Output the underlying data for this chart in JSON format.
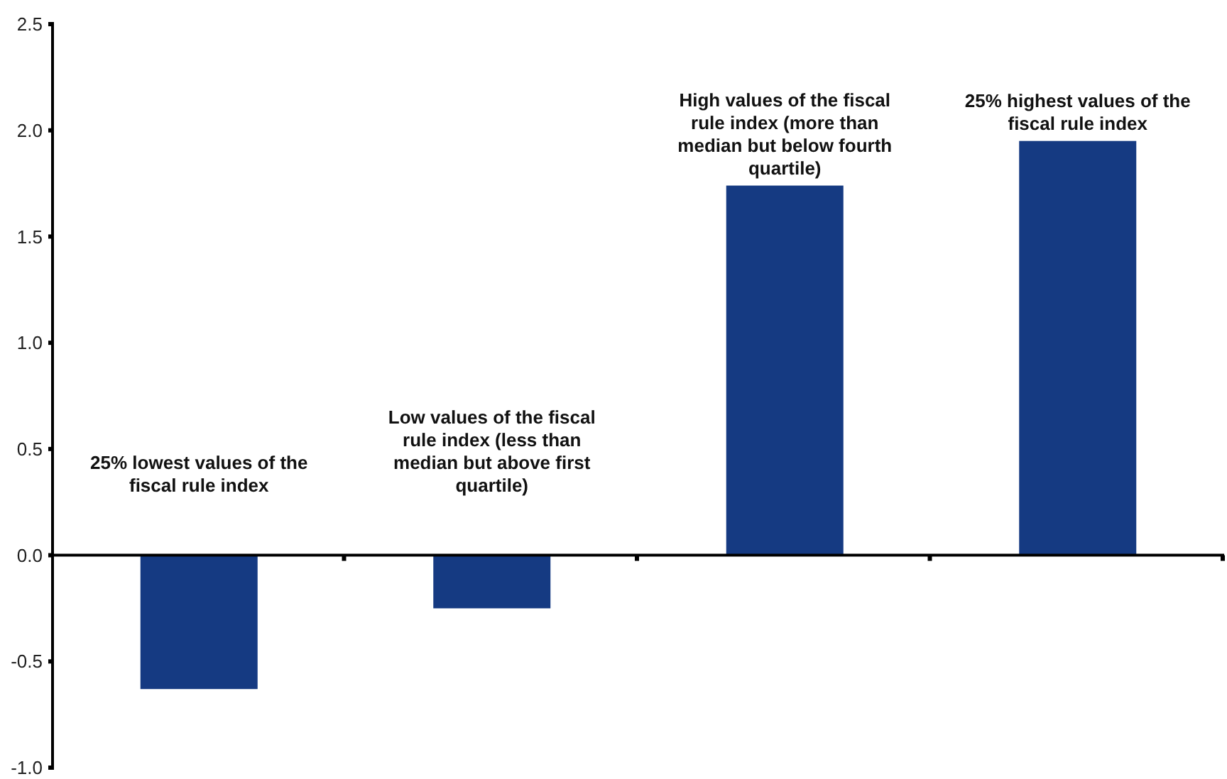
{
  "chart_data": {
    "type": "bar",
    "categories": [
      "25% lowest values of the fiscal rule index",
      "Low values of the fiscal rule index (less than median but above first quartile)",
      "High values of the fiscal rule index (more than median but below fourth quartile)",
      "25% highest values of the fiscal rule index"
    ],
    "values": [
      -0.63,
      -0.25,
      1.74,
      1.95
    ],
    "color": "#153a82",
    "ylim": [
      -1,
      2.5
    ],
    "yticks": [
      {
        "value": -1,
        "label": "-1.0"
      },
      -0.5,
      {
        "value": 0,
        "label": "0.0"
      },
      0.5,
      {
        "value": 1,
        "label": "1.0"
      },
      1.5,
      {
        "value": 2,
        "label": "2.0"
      },
      2.5
    ],
    "tick_labels": "y"
  }
}
